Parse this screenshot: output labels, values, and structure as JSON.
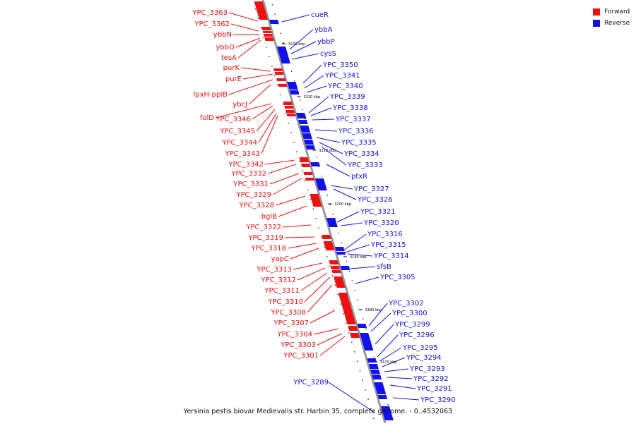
{
  "legend": {
    "items": [
      {
        "label": "Forward",
        "color": "#ee1111"
      },
      {
        "label": "Reverse",
        "color": "#1111ee"
      }
    ]
  },
  "caption": "Yersinia pestis biovar Medievalis str. Harbin 35, complete genome. - 0..4532063",
  "colors": {
    "forward": "#ee1111",
    "reverse": "#1111ee",
    "backbone": "#888888"
  },
  "ticks": [
    "3230 kbp",
    "3220 kbp",
    "3210 kbp",
    "3200 kbp",
    "3190 kbp",
    "3180 kbp",
    "3170 kbp"
  ],
  "forward_labels": [
    "YPC_3363",
    "YPC_3362",
    "ybbN",
    "ybbO",
    "tesA",
    "purK",
    "purE",
    "lpxH-ppiB",
    "ybcJ",
    "folD",
    "YPC_3346",
    "YPC_3345",
    "YPC_3344",
    "YPC_3343",
    "YPC_3342",
    "YPC_3332",
    "YPC_3331",
    "YPC_3329",
    "YPC_3328",
    "bglB",
    "YPC_3322",
    "YPC_3319",
    "YPC_3318",
    "yapC",
    "YPC_3313",
    "YPC_3312",
    "YPC_3311",
    "YPC_3310",
    "YPC_3308",
    "YPC_3307",
    "YPC_3304",
    "YPC_3303",
    "YPC_3301"
  ],
  "reverse_labels": [
    "cueR",
    "ybbA",
    "ybbP",
    "cysS",
    "YPC_3350",
    "YPC_3341",
    "YPC_3340",
    "YPC_3339",
    "YPC_3338",
    "YPC_3337",
    "YPC_3336",
    "YPC_3335",
    "YPC_3334",
    "YPC_3333",
    "ptxR",
    "YPC_3327",
    "YPC_3326",
    "YPC_3321",
    "YPC_3320",
    "YPC_3316",
    "YPC_3315",
    "YPC_3314",
    "sfsB",
    "YPC_3305",
    "YPC_3302",
    "YPC_3300",
    "YPC_3299",
    "YPC_3296",
    "YPC_3295",
    "YPC_3294",
    "YPC_3293",
    "YPC_3292",
    "YPC_3291",
    "YPC_3290",
    "YPC_3289"
  ]
}
